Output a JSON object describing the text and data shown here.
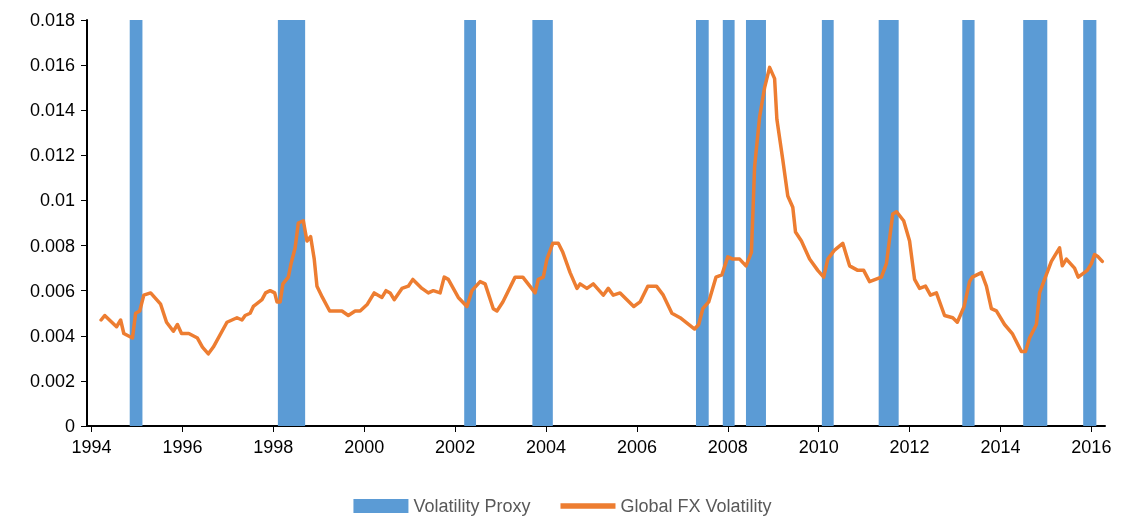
{
  "chart_data": {
    "type": "line",
    "x": [
      1994.21,
      1994.29,
      1994.55,
      1994.64,
      1994.71,
      1994.9,
      1994.97,
      1995.06,
      1995.15,
      1995.3,
      1995.52,
      1995.65,
      1995.8,
      1995.89,
      1995.98,
      1996.14,
      1996.33,
      1996.44,
      1996.57,
      1996.68,
      1996.98,
      1997.2,
      1997.31,
      1997.38,
      1997.49,
      1997.56,
      1997.75,
      1997.83,
      1997.93,
      1998.03,
      1998.08,
      1998.15,
      1998.21,
      1998.33,
      1998.39,
      1998.48,
      1998.55,
      1998.66,
      1998.74,
      1998.82,
      1998.9,
      1998.96,
      1999.08,
      1999.24,
      1999.4,
      1999.51,
      1999.65,
      1999.8,
      1999.91,
      2000.07,
      2000.22,
      2000.39,
      2000.48,
      2000.57,
      2000.66,
      2000.83,
      2000.97,
      2001.07,
      2001.27,
      2001.41,
      2001.52,
      2001.67,
      2001.76,
      2001.85,
      2002.07,
      2002.26,
      2002.37,
      2002.55,
      2002.66,
      2002.84,
      2002.92,
      2003.05,
      2003.32,
      2003.38,
      2003.49,
      2003.76,
      2003.83,
      2003.94,
      2004.02,
      2004.15,
      2004.27,
      2004.37,
      2004.53,
      2004.68,
      2004.75,
      2004.9,
      2005.04,
      2005.26,
      2005.37,
      2005.48,
      2005.63,
      2005.78,
      2005.93,
      2006.07,
      2006.24,
      2006.43,
      2006.58,
      2006.77,
      2006.95,
      2007.27,
      2007.36,
      2007.45,
      2007.58,
      2007.74,
      2007.87,
      2008.0,
      2008.11,
      2008.26,
      2008.4,
      2008.52,
      2008.59,
      2008.7,
      2008.81,
      2008.92,
      2009.03,
      2009.08,
      2009.21,
      2009.32,
      2009.43,
      2009.49,
      2009.62,
      2009.8,
      2009.98,
      2010.11,
      2010.2,
      2010.35,
      2010.53,
      2010.68,
      2010.86,
      2010.99,
      2011.12,
      2011.38,
      2011.49,
      2011.63,
      2011.71,
      2011.87,
      2012.0,
      2012.11,
      2012.22,
      2012.35,
      2012.46,
      2012.59,
      2012.77,
      2012.95,
      2013.05,
      2013.2,
      2013.32,
      2013.38,
      2013.58,
      2013.69,
      2013.8,
      2013.91,
      2014.09,
      2014.26,
      2014.46,
      2014.55,
      2014.64,
      2014.79,
      2014.86,
      2014.97,
      2015.12,
      2015.3,
      2015.36,
      2015.45,
      2015.63,
      2015.71,
      2015.91,
      2016.0,
      2016.07,
      2016.15,
      2016.24
    ],
    "series": [
      {
        "name": "Global FX Volatility",
        "color": "#ed7d31",
        "values": [
          0.0047,
          0.0049,
          0.0044,
          0.0047,
          0.0041,
          0.0039,
          0.005,
          0.0051,
          0.0058,
          0.0059,
          0.0054,
          0.0046,
          0.0042,
          0.0045,
          0.0041,
          0.0041,
          0.0039,
          0.0035,
          0.0032,
          0.0035,
          0.0046,
          0.0048,
          0.0047,
          0.0049,
          0.005,
          0.0053,
          0.0056,
          0.0059,
          0.006,
          0.0059,
          0.0055,
          0.0055,
          0.0063,
          0.0066,
          0.0072,
          0.0079,
          0.009,
          0.0091,
          0.0082,
          0.0084,
          0.0074,
          0.0062,
          0.0057,
          0.0051,
          0.0051,
          0.0051,
          0.0049,
          0.0051,
          0.0051,
          0.0054,
          0.0059,
          0.0057,
          0.006,
          0.0059,
          0.0056,
          0.0061,
          0.0062,
          0.0065,
          0.0061,
          0.0059,
          0.006,
          0.0059,
          0.0066,
          0.0065,
          0.0057,
          0.0053,
          0.006,
          0.0064,
          0.0063,
          0.0052,
          0.0051,
          0.0055,
          0.0066,
          0.0066,
          0.0066,
          0.0059,
          0.0065,
          0.0066,
          0.0074,
          0.0081,
          0.0081,
          0.0077,
          0.0068,
          0.0061,
          0.0063,
          0.0061,
          0.0063,
          0.0058,
          0.0061,
          0.0058,
          0.0059,
          0.0056,
          0.0053,
          0.0055,
          0.0062,
          0.0062,
          0.0058,
          0.005,
          0.0048,
          0.0043,
          0.0045,
          0.0052,
          0.0055,
          0.0066,
          0.0067,
          0.0075,
          0.0074,
          0.0074,
          0.0071,
          0.0077,
          0.0115,
          0.0137,
          0.015,
          0.0159,
          0.0154,
          0.0136,
          0.0118,
          0.0102,
          0.0097,
          0.0086,
          0.0082,
          0.0074,
          0.0069,
          0.0066,
          0.0074,
          0.0078,
          0.0081,
          0.0071,
          0.0069,
          0.0069,
          0.0064,
          0.0066,
          0.0072,
          0.0094,
          0.0095,
          0.0091,
          0.0082,
          0.0065,
          0.0061,
          0.0062,
          0.0058,
          0.0059,
          0.0049,
          0.0048,
          0.0046,
          0.0053,
          0.0064,
          0.0066,
          0.0068,
          0.0062,
          0.0052,
          0.0051,
          0.0045,
          0.0041,
          0.0033,
          0.0033,
          0.0039,
          0.0045,
          0.0059,
          0.0065,
          0.0073,
          0.0079,
          0.0071,
          0.0074,
          0.007,
          0.0066,
          0.0069,
          0.0072,
          0.0076,
          0.0075,
          0.0073
        ]
      }
    ],
    "bands": [
      {
        "axis": "x",
        "from": 1994.84,
        "to": 1995.12,
        "label": "Volatility Proxy",
        "color": "#5b9bd5"
      },
      {
        "axis": "x",
        "from": 1998.1,
        "to": 1998.7,
        "color": "#5b9bd5"
      },
      {
        "axis": "x",
        "from": 2002.2,
        "to": 2002.46,
        "color": "#5b9bd5"
      },
      {
        "axis": "x",
        "from": 2003.7,
        "to": 2004.15,
        "color": "#5b9bd5"
      },
      {
        "axis": "x",
        "from": 2007.3,
        "to": 2007.58,
        "color": "#5b9bd5"
      },
      {
        "axis": "x",
        "from": 2007.89,
        "to": 2008.15,
        "color": "#5b9bd5"
      },
      {
        "axis": "x",
        "from": 2008.4,
        "to": 2008.84,
        "color": "#5b9bd5"
      },
      {
        "axis": "x",
        "from": 2010.07,
        "to": 2010.33,
        "color": "#5b9bd5"
      },
      {
        "axis": "x",
        "from": 2011.32,
        "to": 2011.76,
        "color": "#5b9bd5"
      },
      {
        "axis": "x",
        "from": 2013.16,
        "to": 2013.43,
        "color": "#5b9bd5"
      },
      {
        "axis": "x",
        "from": 2014.5,
        "to": 2015.03,
        "color": "#5b9bd5"
      },
      {
        "axis": "x",
        "from": 2015.82,
        "to": 2016.11,
        "color": "#5b9bd5"
      }
    ],
    "xlim": [
      1993.9,
      2016.3
    ],
    "xticks": [
      1994,
      1996,
      1998,
      2000,
      2002,
      2004,
      2006,
      2008,
      2010,
      2012,
      2014,
      2016
    ],
    "ylim": [
      0,
      0.018
    ],
    "yticks": [
      0,
      0.002,
      0.004,
      0.006,
      0.008,
      0.01,
      0.012,
      0.014,
      0.016,
      0.018
    ],
    "grid": false,
    "legend": "bottom",
    "marker": "none",
    "line_style": "solid"
  }
}
